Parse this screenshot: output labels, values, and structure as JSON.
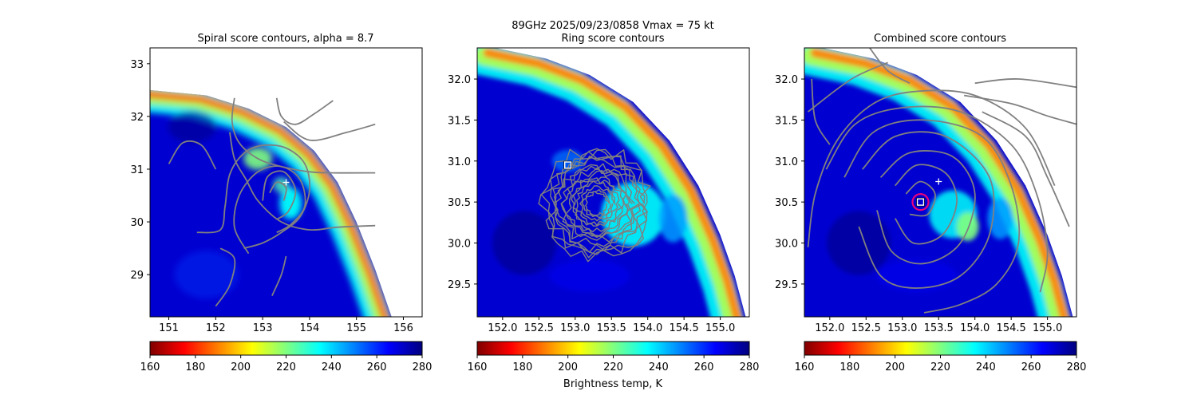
{
  "figure": {
    "suptitle_line1": "89GHz  2025/09/23/0858    Vmax = 75 kt",
    "colorbar_label": "Brightness temp, K"
  },
  "colormap": {
    "name": "jet_r",
    "stops": [
      "#800000",
      "#ff0000",
      "#ff8000",
      "#ffff00",
      "#80ff80",
      "#00ffff",
      "#0080ff",
      "#0000ff",
      "#000080"
    ]
  },
  "contour_color": "#808080",
  "marker_colors": {
    "center_plus": "#ffffff",
    "square": "#ffffff",
    "circle": "#e6007e"
  },
  "chart_data": [
    {
      "type": "heatmap",
      "title": "Spiral score contours, alpha =  8.7",
      "xlim": [
        150.6,
        156.4
      ],
      "ylim": [
        28.2,
        33.3
      ],
      "xticks": [
        151,
        152,
        153,
        154,
        155,
        156
      ],
      "yticks": [
        29,
        30,
        31,
        32,
        33
      ],
      "colorbar": {
        "min": 160,
        "max": 280,
        "ticks": [
          160,
          180,
          200,
          220,
          240,
          260,
          280
        ]
      },
      "center_marker": {
        "x": 153.5,
        "y": 30.75
      },
      "features": "spiral",
      "swath_edge": [
        [
          150.6,
          32.5
        ],
        [
          151.8,
          32.4
        ],
        [
          152.7,
          32.15
        ],
        [
          153.5,
          31.8
        ],
        [
          154.1,
          31.35
        ],
        [
          154.6,
          30.75
        ],
        [
          155.0,
          30.0
        ],
        [
          155.4,
          29.1
        ],
        [
          155.75,
          28.2
        ]
      ],
      "contours": [
        [
          [
            152.4,
            32.35
          ],
          [
            152.35,
            31.9
          ],
          [
            152.5,
            31.5
          ],
          [
            152.9,
            31.2
          ],
          [
            153.4,
            31.05
          ],
          [
            154.0,
            30.95
          ],
          [
            154.5,
            30.93
          ],
          [
            155.4,
            30.93
          ]
        ],
        [
          [
            153.3,
            32.35
          ],
          [
            153.4,
            32.0
          ],
          [
            153.7,
            31.85
          ],
          [
            154.1,
            32.05
          ],
          [
            154.5,
            32.3
          ]
        ],
        [
          [
            153.45,
            31.9
          ],
          [
            154.0,
            31.55
          ],
          [
            154.8,
            31.7
          ],
          [
            155.4,
            31.85
          ]
        ],
        [
          [
            152.3,
            31.7
          ],
          [
            152.4,
            31.2
          ],
          [
            152.65,
            30.8
          ],
          [
            152.9,
            30.4
          ],
          [
            153.4,
            30.0
          ],
          [
            154.0,
            29.85
          ],
          [
            154.6,
            29.9
          ],
          [
            155.4,
            29.93
          ]
        ],
        [
          [
            151.0,
            31.1
          ],
          [
            151.3,
            31.5
          ],
          [
            151.7,
            31.45
          ],
          [
            152.0,
            31.0
          ]
        ],
        [
          [
            151.6,
            29.8
          ],
          [
            152.1,
            29.85
          ],
          [
            152.2,
            30.3
          ],
          [
            152.3,
            30.9
          ],
          [
            152.6,
            31.3
          ],
          [
            153.0,
            31.45
          ],
          [
            153.5,
            31.4
          ],
          [
            153.9,
            31.1
          ],
          [
            154.0,
            30.6
          ],
          [
            153.8,
            30.1
          ],
          [
            153.4,
            29.8
          ],
          [
            153.0,
            29.6
          ],
          [
            152.6,
            29.5
          ]
        ],
        [
          [
            152.7,
            29.4
          ],
          [
            152.4,
            29.9
          ],
          [
            152.5,
            30.5
          ],
          [
            152.9,
            30.95
          ],
          [
            153.4,
            31.05
          ],
          [
            153.8,
            30.8
          ],
          [
            153.9,
            30.3
          ],
          [
            153.6,
            29.95
          ],
          [
            153.3,
            29.8
          ]
        ],
        [
          [
            153.0,
            30.4
          ],
          [
            153.1,
            30.85
          ],
          [
            153.45,
            30.95
          ],
          [
            153.7,
            30.6
          ],
          [
            153.55,
            30.2
          ],
          [
            153.3,
            30.05
          ]
        ],
        [
          [
            153.15,
            30.55
          ],
          [
            153.3,
            30.75
          ],
          [
            153.5,
            30.65
          ],
          [
            153.45,
            30.4
          ]
        ],
        [
          [
            152.0,
            28.4
          ],
          [
            152.3,
            28.8
          ],
          [
            152.4,
            29.3
          ],
          [
            152.1,
            29.5
          ]
        ],
        [
          [
            153.2,
            28.6
          ],
          [
            153.4,
            29.0
          ],
          [
            153.5,
            29.35
          ]
        ]
      ]
    },
    {
      "type": "heatmap",
      "title": "Ring score contours",
      "xlim": [
        151.65,
        155.4
      ],
      "ylim": [
        29.1,
        32.38
      ],
      "xticks": [
        152.0,
        152.5,
        153.0,
        153.5,
        154.0,
        154.5,
        155.0
      ],
      "xtick_labels": [
        "152.0",
        "152.5",
        "153.0",
        "153.5",
        "154.0",
        "154.5",
        "155.0"
      ],
      "yticks": [
        29.5,
        30.0,
        30.5,
        31.0,
        31.5,
        32.0
      ],
      "ytick_labels": [
        "29.5",
        "30.0",
        "30.5",
        "31.0",
        "31.5",
        "32.0"
      ],
      "colorbar": {
        "min": 160,
        "max": 280,
        "ticks": [
          160,
          180,
          200,
          220,
          240,
          260,
          280
        ]
      },
      "square_marker": {
        "x": 152.9,
        "y": 30.95
      },
      "features": "ring",
      "swath_edge": [
        [
          151.9,
          32.38
        ],
        [
          152.6,
          32.25
        ],
        [
          153.2,
          32.05
        ],
        [
          153.8,
          31.72
        ],
        [
          154.3,
          31.25
        ],
        [
          154.7,
          30.7
        ],
        [
          155.0,
          30.1
        ],
        [
          155.2,
          29.6
        ],
        [
          155.35,
          29.1
        ]
      ],
      "ring_center": [
        153.3,
        30.48
      ],
      "ring_radii": [
        0.62,
        0.5,
        0.38,
        0.26,
        0.14
      ]
    },
    {
      "type": "heatmap",
      "title": "Combined score contours",
      "xlim": [
        151.65,
        155.4
      ],
      "ylim": [
        29.1,
        32.38
      ],
      "xticks": [
        152.0,
        152.5,
        153.0,
        153.5,
        154.0,
        154.5,
        155.0
      ],
      "xtick_labels": [
        "152.0",
        "152.5",
        "153.0",
        "153.5",
        "154.0",
        "154.5",
        "155.0"
      ],
      "yticks": [
        29.5,
        30.0,
        30.5,
        31.0,
        31.5,
        32.0
      ],
      "ytick_labels": [
        "29.5",
        "30.0",
        "30.5",
        "31.0",
        "31.5",
        "32.0"
      ],
      "colorbar": {
        "min": 160,
        "max": 280,
        "ticks": [
          160,
          180,
          200,
          220,
          240,
          260,
          280
        ]
      },
      "center_marker": {
        "x": 153.5,
        "y": 30.75
      },
      "square_marker": {
        "x": 153.25,
        "y": 30.5
      },
      "circle_marker": {
        "x": 153.25,
        "y": 30.5
      },
      "features": "combined",
      "swath_edge": [
        [
          151.9,
          32.38
        ],
        [
          152.6,
          32.25
        ],
        [
          153.2,
          32.05
        ],
        [
          153.8,
          31.72
        ],
        [
          154.3,
          31.25
        ],
        [
          154.7,
          30.7
        ],
        [
          155.0,
          30.1
        ],
        [
          155.2,
          29.6
        ],
        [
          155.35,
          29.1
        ]
      ],
      "contours": [
        [
          [
            153.05,
            30.6
          ],
          [
            153.25,
            30.75
          ],
          [
            153.45,
            30.6
          ],
          [
            153.35,
            30.35
          ],
          [
            153.1,
            30.35
          ]
        ],
        [
          [
            152.9,
            30.7
          ],
          [
            153.2,
            30.95
          ],
          [
            153.6,
            30.85
          ],
          [
            153.75,
            30.5
          ],
          [
            153.55,
            30.1
          ],
          [
            153.15,
            30.0
          ],
          [
            152.9,
            30.3
          ]
        ],
        [
          [
            152.7,
            30.8
          ],
          [
            153.1,
            31.1
          ],
          [
            153.7,
            31.05
          ],
          [
            154.0,
            30.6
          ],
          [
            153.8,
            30.0
          ],
          [
            153.3,
            29.75
          ],
          [
            152.85,
            29.9
          ],
          [
            152.65,
            30.4
          ]
        ],
        [
          [
            152.45,
            30.9
          ],
          [
            152.9,
            31.3
          ],
          [
            153.6,
            31.3
          ],
          [
            154.2,
            30.8
          ],
          [
            154.2,
            30.1
          ],
          [
            153.8,
            29.6
          ],
          [
            153.2,
            29.45
          ],
          [
            152.7,
            29.6
          ],
          [
            152.4,
            30.2
          ]
        ],
        [
          [
            152.2,
            30.8
          ],
          [
            152.6,
            31.35
          ],
          [
            153.3,
            31.5
          ],
          [
            154.1,
            31.3
          ],
          [
            154.5,
            30.7
          ],
          [
            154.6,
            30.0
          ],
          [
            154.3,
            29.5
          ],
          [
            153.8,
            29.25
          ],
          [
            153.3,
            29.15
          ]
        ],
        [
          [
            151.95,
            30.9
          ],
          [
            152.35,
            31.45
          ],
          [
            153.0,
            31.65
          ],
          [
            153.8,
            31.6
          ],
          [
            154.5,
            31.2
          ],
          [
            154.85,
            30.6
          ],
          [
            155.0,
            29.9
          ],
          [
            154.9,
            29.4
          ]
        ],
        [
          [
            151.7,
            29.95
          ],
          [
            151.8,
            30.6
          ],
          [
            152.1,
            31.25
          ],
          [
            152.6,
            31.7
          ],
          [
            153.2,
            31.85
          ],
          [
            154.0,
            31.8
          ],
          [
            154.7,
            31.4
          ],
          [
            155.1,
            30.7
          ]
        ],
        [
          [
            151.7,
            31.6
          ],
          [
            152.3,
            32.0
          ],
          [
            152.8,
            32.2
          ]
        ],
        [
          [
            151.75,
            32.0
          ],
          [
            151.8,
            31.5
          ],
          [
            152.0,
            31.2
          ]
        ],
        [
          [
            152.55,
            32.38
          ],
          [
            152.8,
            32.1
          ],
          [
            153.1,
            31.95
          ]
        ],
        [
          [
            154.0,
            31.95
          ],
          [
            154.6,
            32.0
          ],
          [
            155.4,
            31.9
          ]
        ],
        [
          [
            153.85,
            31.8
          ],
          [
            154.5,
            31.7
          ],
          [
            155.0,
            31.55
          ],
          [
            155.4,
            31.45
          ]
        ],
        [
          [
            154.1,
            31.6
          ],
          [
            154.7,
            31.3
          ],
          [
            155.0,
            30.8
          ],
          [
            155.3,
            30.2
          ]
        ]
      ]
    }
  ]
}
